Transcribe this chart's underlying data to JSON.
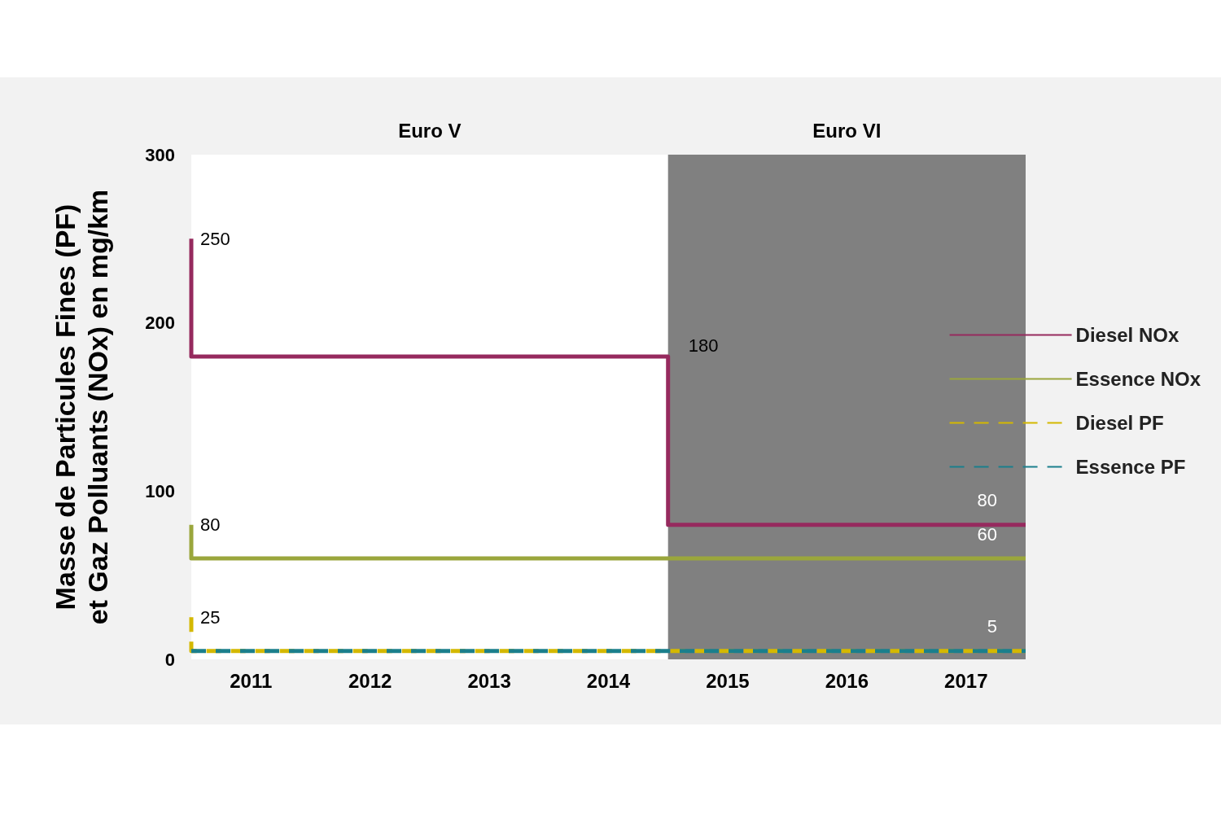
{
  "chart_data": {
    "type": "step",
    "ylabel": "Masse de Particules Fines (PF)\net Gaz Polluants (NOx) en mg/km",
    "xlim": [
      2010.5,
      2017.5
    ],
    "xticks": [
      2011,
      2012,
      2013,
      2014,
      2015,
      2016,
      2017
    ],
    "ylim": [
      0,
      300
    ],
    "yticks": [
      0,
      100,
      200,
      300
    ],
    "legend": "right",
    "marker": "none",
    "bands": [
      {
        "axis": "x",
        "from": 2010.5,
        "to": 2014.5,
        "label": "Euro V",
        "color": "#ffffff"
      },
      {
        "axis": "x",
        "from": 2014.5,
        "to": 2017.5,
        "label": "Euro VI",
        "color": "#808080"
      }
    ],
    "series": [
      {
        "name": "Diesel NOx",
        "color": "#962a5e",
        "line_style": "solid",
        "x": [
          2010.5,
          2010.5,
          2014.5,
          2014.5,
          2017.5
        ],
        "values": [
          250,
          180,
          180,
          80,
          80
        ],
        "value_labels": [
          "250",
          null,
          "180",
          null,
          "80"
        ]
      },
      {
        "name": "Essence NOx",
        "color": "#9aa63c",
        "line_style": "solid",
        "x": [
          2010.5,
          2010.5,
          2017.5
        ],
        "values": [
          80,
          60,
          60
        ],
        "value_labels": [
          "80",
          null,
          "60"
        ]
      },
      {
        "name": "Diesel PF",
        "color": "#d4b800",
        "line_style": "dashed",
        "x": [
          2010.5,
          2010.5,
          2017.5
        ],
        "values": [
          25,
          5,
          5
        ],
        "value_labels": [
          "25",
          null,
          null
        ]
      },
      {
        "name": "Essence PF",
        "color": "#1b7f8c",
        "line_style": "dashed",
        "x": [
          2010.5,
          2017.5
        ],
        "values": [
          5,
          5
        ],
        "value_labels": [
          null,
          "5"
        ]
      }
    ]
  }
}
